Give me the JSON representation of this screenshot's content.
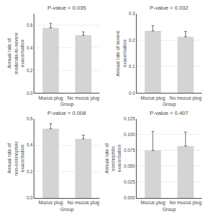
{
  "chart_data": [
    {
      "type": "bar",
      "title": "P-value = 0.035",
      "xlabel": "Group",
      "ylabel": "Annual rate of moderate-to-severe exacerbation",
      "categories": [
        "Mucus plug",
        "No mucus plug"
      ],
      "values": [
        0.575,
        0.51
      ],
      "errors": [
        0.04,
        0.03
      ],
      "ylim": [
        0.0,
        0.7
      ],
      "yticks": [
        {
          "value": 0.0,
          "label": "0.0"
        },
        0.2,
        0.4,
        0.6
      ],
      "color": "#d4d4d4",
      "grid": true
    },
    {
      "type": "bar",
      "title": "P-value = 0.032",
      "xlabel": "Group",
      "ylabel": "Annual rate of severe exacerbation",
      "categories": [
        "Mucus plug",
        "No mucus plug"
      ],
      "values": [
        0.235,
        0.213
      ],
      "errors": [
        0.02,
        0.02
      ],
      "ylim": [
        0.0,
        0.3
      ],
      "yticks": [
        {
          "value": 0.0,
          "label": "0.0"
        },
        0.1,
        0.2,
        0.3
      ],
      "color": "#d4d4d4",
      "grid": true
    },
    {
      "type": "bar",
      "title": "P-value = 0.008",
      "xlabel": "Group",
      "ylabel": "Annual rate of non-eosinophilic exacerbation",
      "categories": [
        "Mucus plug",
        "No mucus plug"
      ],
      "values": [
        0.525,
        0.448
      ],
      "errors": [
        0.038,
        0.028
      ],
      "ylim": [
        0.0,
        0.6
      ],
      "yticks": [
        {
          "value": 0.0,
          "label": "0.0"
        },
        0.2,
        0.4,
        0.6
      ],
      "color": "#d4d4d4",
      "grid": true
    },
    {
      "type": "bar",
      "title": "P-value = 0.407",
      "xlabel": "Group",
      "ylabel": "Annual rate of eosinophilic exacerbation",
      "categories": [
        "Mucus plug",
        "No mucus plug"
      ],
      "values": [
        0.075,
        0.082
      ],
      "errors": [
        0.03,
        0.022
      ],
      "ylim": [
        0.0,
        0.125
      ],
      "yticks": [
        {
          "value": 0.0,
          "label": "0.000"
        },
        0.025,
        {
          "value": 0.05,
          "label": "0.050"
        },
        0.075,
        {
          "value": 0.1,
          "label": "0.100"
        },
        0.125
      ],
      "color": "#d4d4d4",
      "grid": true
    }
  ]
}
